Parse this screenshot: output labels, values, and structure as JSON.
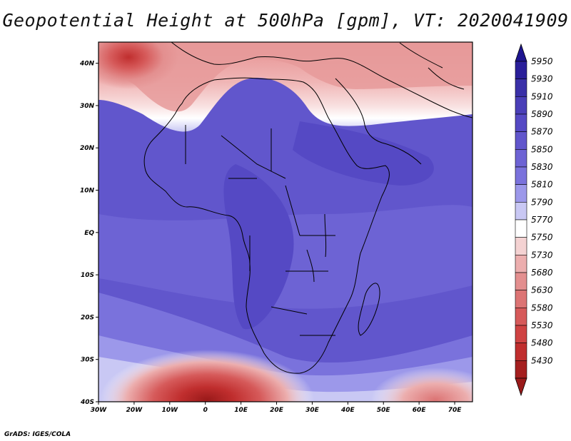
{
  "title": "Geopotential Height at 500hPa [gpm], VT: 2020041909",
  "credit": "GrADS: IGES/COLA",
  "map": {
    "lon_range": [
      -30,
      75
    ],
    "lat_range": [
      -40,
      45
    ],
    "x_ticks": [
      "30W",
      "20W",
      "10W",
      "0",
      "10E",
      "20E",
      "30E",
      "40E",
      "50E",
      "60E",
      "70E"
    ],
    "y_ticks": [
      "40N",
      "30N",
      "20N",
      "10N",
      "EQ",
      "10S",
      "20S",
      "30S",
      "40S"
    ]
  },
  "colorbar": {
    "levels": [
      "5950",
      "5930",
      "5910",
      "5890",
      "5870",
      "5850",
      "5830",
      "5810",
      "5790",
      "5770",
      "5750",
      "5730",
      "5680",
      "5630",
      "5580",
      "5530",
      "5480",
      "5430"
    ],
    "colors": [
      "#2a1f9a",
      "#3a30a8",
      "#4a3fb8",
      "#5549c4",
      "#6156cc",
      "#6d63d4",
      "#7a72dc",
      "#9c98ea",
      "#c9c8f4",
      "#ffffff",
      "#f4d2d2",
      "#ecaeae",
      "#e38f8f",
      "#dc7474",
      "#d65a5a",
      "#cf4343",
      "#c02e2e",
      "#a51f1f"
    ],
    "top_arrow_color": "#1e1590",
    "bottom_arrow_color": "#9a1a1a"
  }
}
